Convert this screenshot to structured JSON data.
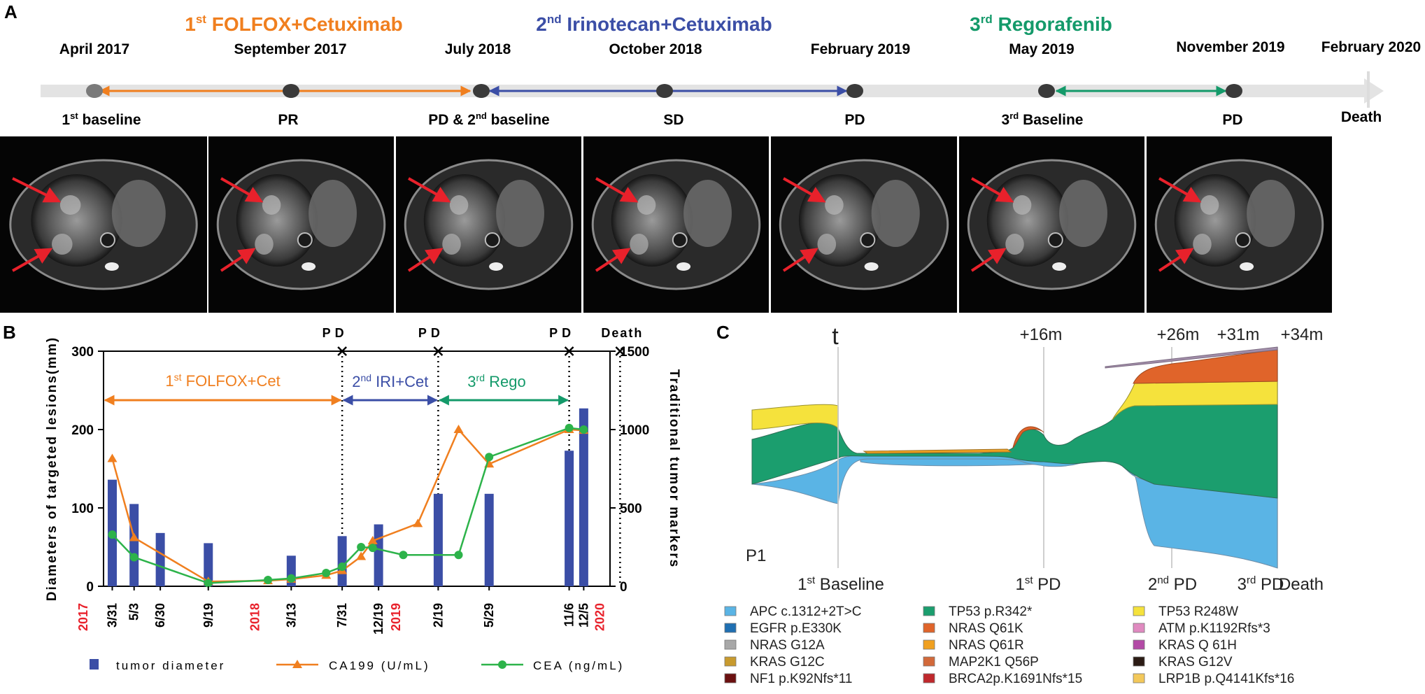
{
  "panels": {
    "a": "A",
    "b": "B",
    "c": "C"
  },
  "timeline": {
    "regimens": [
      {
        "prefix": "1",
        "sup": "st",
        "label": "FOLFOX+Cetuximab",
        "color": "#f07f1f"
      },
      {
        "prefix": "2",
        "sup": "nd",
        "label": "Irinotecan+Cetuximab",
        "color": "#3b4ea6"
      },
      {
        "prefix": "3",
        "sup": "rd",
        "label": "Regorafenib",
        "color": "#149a6a"
      }
    ],
    "dates": [
      "April 2017",
      "September 2017",
      "July 2018",
      "October 2018",
      "February 2019",
      "May 2019",
      "November 2019",
      "February 2020"
    ],
    "events": [
      {
        "text": "1",
        "sup": "st",
        "after": " baseline"
      },
      {
        "text": "PR",
        "sup": "",
        "after": ""
      },
      {
        "text": "PD & 2",
        "sup": "nd",
        "after": " baseline"
      },
      {
        "text": "SD",
        "sup": "",
        "after": ""
      },
      {
        "text": "PD",
        "sup": "",
        "after": ""
      },
      {
        "text": "3",
        "sup": "rd",
        "after": " Baseline"
      },
      {
        "text": "PD",
        "sup": "",
        "after": ""
      },
      {
        "text": "Death",
        "sup": "",
        "after": ""
      }
    ],
    "scan_count": 7
  },
  "chart_data": [
    {
      "type": "bar+line",
      "panel": "B",
      "ylabel_left": "Diameters of targeted lesions(mm)",
      "ylabel_right": "Traditional tumor markers",
      "ylim_left": [
        0,
        300
      ],
      "ylim_right": [
        0,
        1500
      ],
      "left_ticks": [
        "0",
        "100",
        "200",
        "300"
      ],
      "right_ticks": [
        "0",
        "500",
        "1000",
        "1500"
      ],
      "year_labels": [
        "2017",
        "2018",
        "2019",
        "2020"
      ],
      "x_labels": [
        "3/31",
        "5/3",
        "6/30",
        "9/19",
        "3/13",
        "7/31",
        "12/19",
        "2/19",
        "5/29",
        "11/6",
        "12/5"
      ],
      "event_markers": [
        "PD",
        "PD",
        "PD",
        "Death"
      ],
      "regimens": [
        {
          "prefix": "1",
          "sup": "st",
          "label": " FOLFOX+Cet",
          "color": "#f07f1f"
        },
        {
          "prefix": "2",
          "sup": "nd",
          "label": " IRI+Cet",
          "color": "#3b4ea6"
        },
        {
          "prefix": "3",
          "sup": "rd",
          "label": " Rego",
          "color": "#149a6a"
        }
      ],
      "series": [
        {
          "name": "tumor diameter",
          "kind": "bar",
          "color": "#3b4ea6",
          "points": [
            [
              0.3,
              136
            ],
            [
              1.05,
              105
            ],
            [
              1.95,
              68
            ],
            [
              3.6,
              55
            ],
            [
              6.45,
              39
            ],
            [
              8.2,
              64
            ],
            [
              9.45,
              79
            ],
            [
              11.5,
              118
            ],
            [
              13.25,
              118
            ],
            [
              16.0,
              173
            ],
            [
              16.5,
              227
            ]
          ]
        },
        {
          "name": "CA199 (U/mL)",
          "kind": "line",
          "marker": "triangle",
          "color": "#f07f1f",
          "points": [
            [
              0.3,
              815
            ],
            [
              1.05,
              310
            ],
            [
              3.6,
              30
            ],
            [
              5.65,
              35
            ],
            [
              6.45,
              45
            ],
            [
              7.65,
              70
            ],
            [
              8.2,
              100
            ],
            [
              8.85,
              190
            ],
            [
              9.25,
              290
            ],
            [
              10.8,
              400
            ],
            [
              12.2,
              1000
            ],
            [
              13.25,
              780
            ],
            [
              16.0,
              1000
            ],
            [
              16.5,
              995
            ]
          ]
        },
        {
          "name": "CEA (ng/mL)",
          "kind": "line",
          "marker": "circle",
          "color": "#2db34a",
          "points": [
            [
              0.3,
              330
            ],
            [
              1.05,
              185
            ],
            [
              3.6,
              20
            ],
            [
              5.65,
              40
            ],
            [
              6.45,
              50
            ],
            [
              7.65,
              85
            ],
            [
              8.2,
              125
            ],
            [
              8.85,
              250
            ],
            [
              9.25,
              245
            ],
            [
              10.3,
              200
            ],
            [
              12.2,
              200
            ],
            [
              13.25,
              825
            ],
            [
              16.0,
              1010
            ],
            [
              16.5,
              1000
            ]
          ]
        }
      ]
    },
    {
      "type": "area",
      "panel": "C",
      "title": "P1",
      "time_labels": [
        "t",
        "+16m",
        "+26m",
        "+31m",
        "+34m"
      ],
      "event_labels": [
        {
          "text": "1",
          "sup": "st",
          "after": " Baseline"
        },
        {
          "text": "1",
          "sup": "st",
          "after": " PD"
        },
        {
          "text": "2",
          "sup": "nd",
          "after": " PD"
        },
        {
          "text": "3",
          "sup": "rd",
          "after": " PD"
        },
        {
          "text": "Death",
          "sup": "",
          "after": ""
        }
      ],
      "legend": [
        {
          "name": "APC c.1312+2T>C",
          "color": "#5ab4e5"
        },
        {
          "name": "TP53 p.R342*",
          "color": "#1b9e6e"
        },
        {
          "name": "TP53 R248W",
          "color": "#f5e23c"
        },
        {
          "name": "EGFR p.E330K",
          "color": "#1f6fb2"
        },
        {
          "name": "NRAS Q61K",
          "color": "#e0642a"
        },
        {
          "name": "ATM p.K1192Rfs*3",
          "color": "#e08ac0"
        },
        {
          "name": "NRAS G12A",
          "color": "#a8a8a8"
        },
        {
          "name": "NRAS Q61R",
          "color": "#f0a020"
        },
        {
          "name": "KRAS Q 61H",
          "color": "#b34aa6"
        },
        {
          "name": "KRAS G12C",
          "color": "#c89a2e"
        },
        {
          "name": "MAP2K1 Q56P",
          "color": "#d2693a"
        },
        {
          "name": "KRAS G12V",
          "color": "#2b1b14"
        },
        {
          "name": "NF1 p.K92Nfs*11",
          "color": "#6b1010"
        },
        {
          "name": "BRCA2p.K1691Nfs*15",
          "color": "#c0282c"
        },
        {
          "name": "LRP1B p.Q4141Kfs*16",
          "color": "#f3c85a"
        }
      ]
    }
  ],
  "bottom_legend": [
    "tumor diameter",
    "CA199 (U/mL)",
    "CEA (ng/mL)"
  ]
}
